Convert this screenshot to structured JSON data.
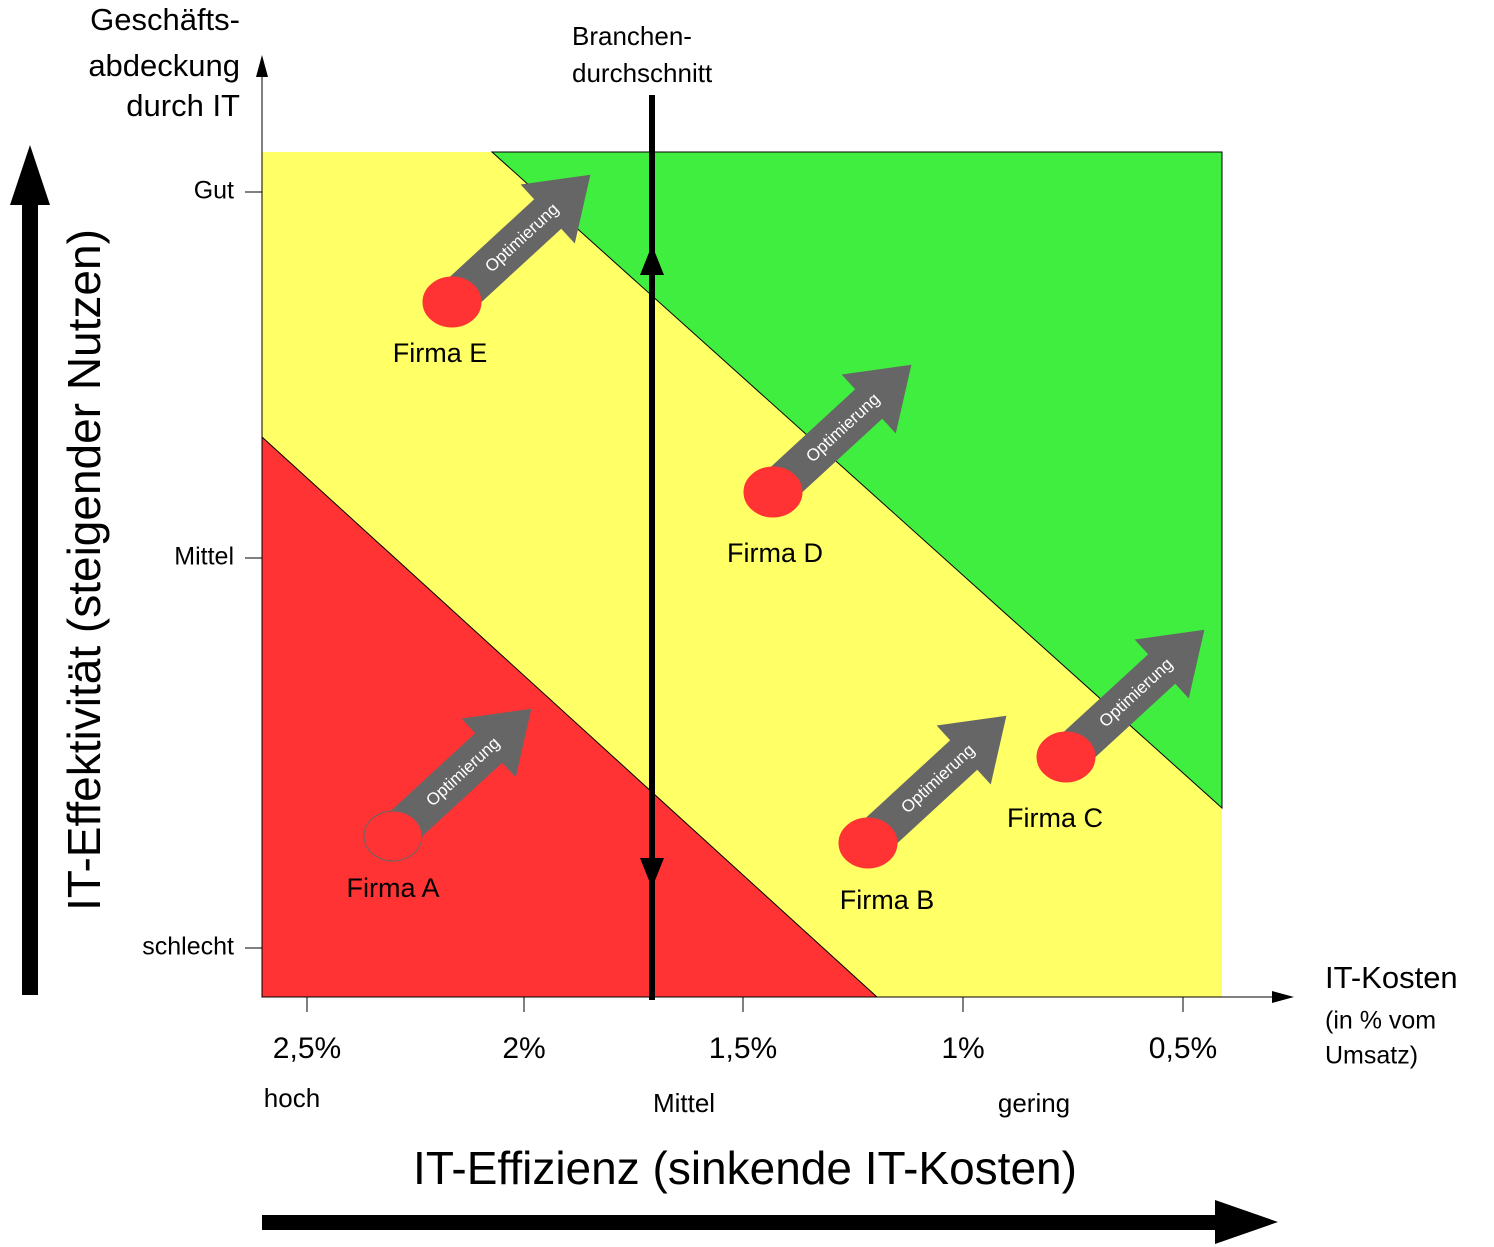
{
  "diagram": {
    "y_axis": {
      "title": [
        "Geschäfts-",
        "abdeckung",
        "durch IT"
      ],
      "ticks": [
        "Gut",
        "Mittel",
        "schlecht"
      ],
      "label": "IT-Effektivität (steigender Nutzen)"
    },
    "x_axis": {
      "title": [
        "IT-Kosten",
        "(in % vom",
        "Umsatz)"
      ],
      "ticks": [
        "2,5%",
        "2%",
        "1,5%",
        "1%",
        "0,5%"
      ],
      "levels": [
        "hoch",
        "Mittel",
        "gering"
      ],
      "label": "IT-Effizienz (sinkende IT-Kosten)"
    },
    "average_line": {
      "label": [
        "Branchen-",
        "durchschnitt"
      ]
    },
    "firms": [
      {
        "label": "Firma E",
        "arrow": "Optimierung"
      },
      {
        "label": "Firma D",
        "arrow": "Optimierung"
      },
      {
        "label": "Firma A",
        "arrow": "Optimierung"
      },
      {
        "label": "Firma B",
        "arrow": "Optimierung"
      },
      {
        "label": "Firma C",
        "arrow": "Optimierung"
      }
    ]
  }
}
